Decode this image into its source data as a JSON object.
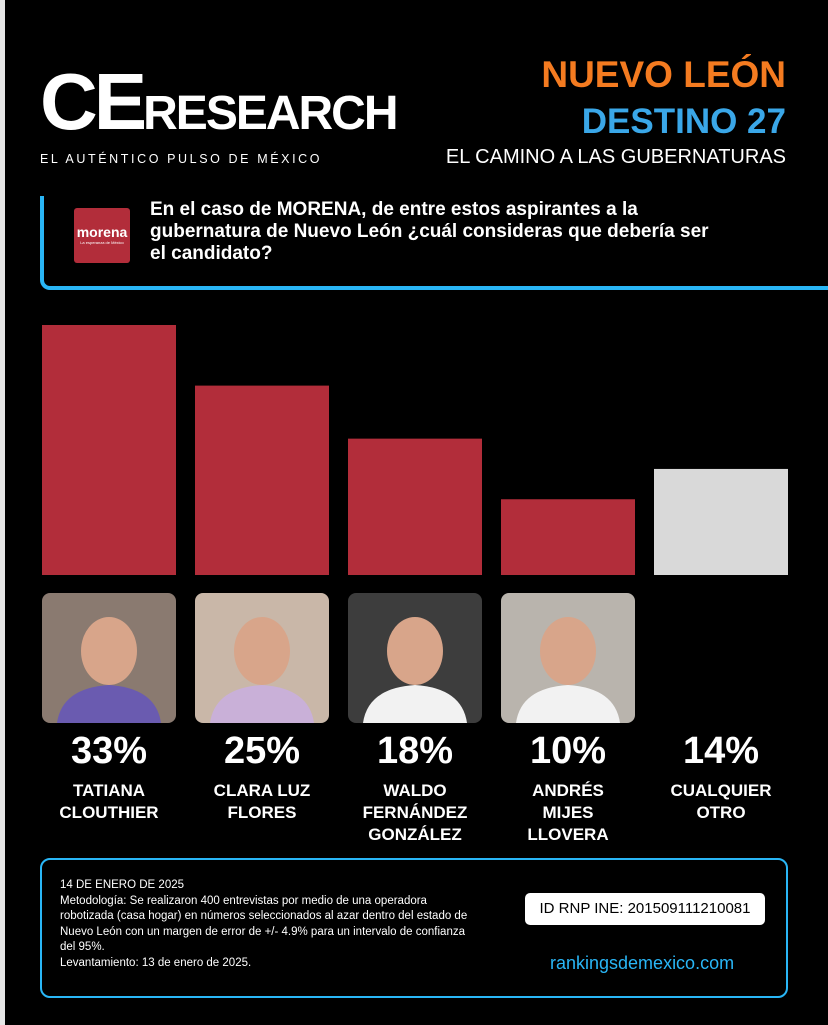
{
  "header": {
    "logo_ce": "CE",
    "logo_research": "RESEARCH",
    "tagline": "EL AUTÉNTICO PULSO DE MÉXICO",
    "state": "NUEVO LEÓN",
    "series_title": "DESTINO 27",
    "subtitle": "EL CAMINO A LAS GUBERNATURAS"
  },
  "question": {
    "party_logo": "morena",
    "party_tagline": "La esperanza de México",
    "text": "En el caso de MORENA, de entre estos aspirantes a la gubernatura de Nuevo León ¿cuál consideras que debería ser el candidato?"
  },
  "chart_data": {
    "type": "bar",
    "categories": [
      "TATIANA CLOUTHIER",
      "CLARA LUZ FLORES",
      "WALDO FERNÁNDEZ GONZÁLEZ",
      "ANDRÉS MIJES LLOVERA",
      "CUALQUIER OTRO"
    ],
    "values": [
      33,
      25,
      18,
      10,
      14
    ],
    "value_labels": [
      "33%",
      "25%",
      "18%",
      "10%",
      "14%"
    ],
    "colors": [
      "#b22d3a",
      "#b22d3a",
      "#b22d3a",
      "#b22d3a",
      "#d9d9d9"
    ]
  },
  "footer": {
    "date": "14 DE ENERO DE 2025",
    "methodology": "Metodología: Se realizaron 400 entrevistas por medio de una operadora robotizada (casa hogar) en números seleccionados al azar dentro del estado de Nuevo León con un margen de error de +/- 4.9% para un intervalo de confianza del 95%.",
    "fieldwork": "Levantamiento: 13 de enero de 2025.",
    "registry": "ID RNP INE: 201509111210081",
    "website": "rankingsdemexico.com"
  }
}
